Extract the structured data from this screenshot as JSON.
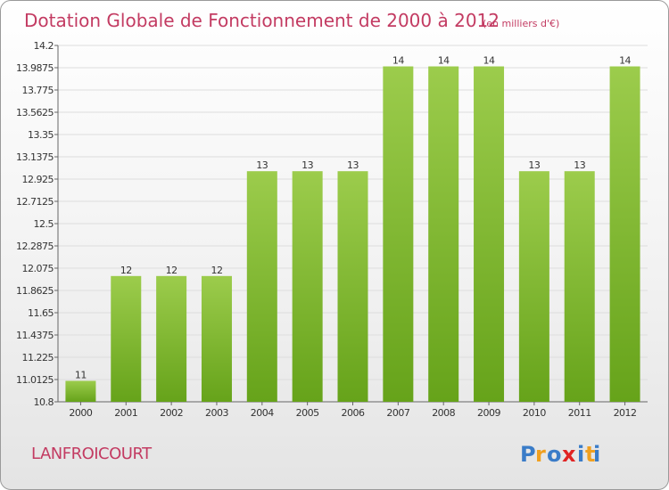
{
  "chart_data": {
    "type": "bar",
    "title": "Dotation Globale de Fonctionnement de 2000 à 2012",
    "unit": "(en milliers d'€)",
    "categories": [
      "2000",
      "2001",
      "2002",
      "2003",
      "2004",
      "2005",
      "2006",
      "2007",
      "2008",
      "2009",
      "2010",
      "2011",
      "2012"
    ],
    "values": [
      11,
      12,
      12,
      12,
      13,
      13,
      13,
      14,
      14,
      14,
      13,
      13,
      14
    ],
    "value_labels": [
      "11",
      "12",
      "12",
      "12",
      "13",
      "13",
      "13",
      "14",
      "14",
      "14",
      "13",
      "13",
      "14"
    ],
    "yticks": [
      "14.2",
      "13.9875",
      "13.775",
      "13.5625",
      "13.35",
      "13.1375",
      "12.925",
      "12.7125",
      "12.5",
      "12.2875",
      "12.075",
      "11.8625",
      "11.65",
      "11.4375",
      "11.225",
      "11.0125",
      "10.8"
    ],
    "ylim": [
      10.8,
      14.2
    ],
    "grid": true
  },
  "footer": {
    "commune": "LANFROICOURT",
    "brand": [
      "P",
      "r",
      "o",
      "x",
      "i",
      "t",
      "i"
    ]
  },
  "colors": {
    "title": "#c33b62",
    "bar_light": "#9ccc4c",
    "bar_dark": "#66a31a",
    "grid": "#dddddd",
    "brand": [
      "#3a7cc8",
      "#f0a020",
      "#3a7cc8",
      "#e02424",
      "#3a7cc8",
      "#f0a020",
      "#3a7cc8"
    ]
  }
}
